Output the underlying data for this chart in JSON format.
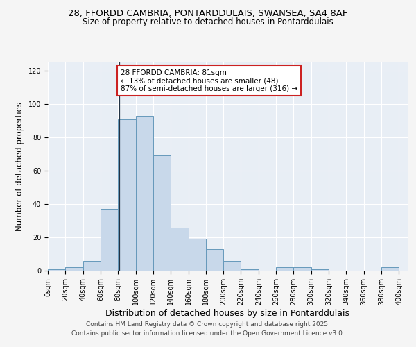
{
  "title1": "28, FFORDD CAMBRIA, PONTARDDULAIS, SWANSEA, SA4 8AF",
  "title2": "Size of property relative to detached houses in Pontarddulais",
  "xlabel": "Distribution of detached houses by size in Pontarddulais",
  "ylabel": "Number of detached properties",
  "bin_edges": [
    0,
    20,
    40,
    60,
    80,
    100,
    120,
    140,
    160,
    180,
    200,
    220,
    240,
    260,
    280,
    300,
    320,
    340,
    360,
    380,
    400
  ],
  "bar_heights": [
    1,
    2,
    6,
    37,
    91,
    93,
    69,
    26,
    19,
    13,
    6,
    1,
    0,
    2,
    2,
    1,
    0,
    0,
    0,
    2
  ],
  "bar_color": "#c8d8ea",
  "bar_edge_color": "#6699bb",
  "property_line_x": 81,
  "annotation_text": "28 FFORDD CAMBRIA: 81sqm\n← 13% of detached houses are smaller (48)\n87% of semi-detached houses are larger (316) →",
  "annotation_box_color": "#ffffff",
  "annotation_border_color": "#cc2222",
  "ylim": [
    0,
    125
  ],
  "xlim": [
    0,
    410
  ],
  "tick_positions": [
    0,
    20,
    40,
    60,
    80,
    100,
    120,
    140,
    160,
    180,
    200,
    220,
    240,
    260,
    280,
    300,
    320,
    340,
    360,
    380,
    400
  ],
  "tick_labels": [
    "0sqm",
    "20sqm",
    "40sqm",
    "60sqm",
    "80sqm",
    "100sqm",
    "120sqm",
    "140sqm",
    "160sqm",
    "180sqm",
    "200sqm",
    "220sqm",
    "240sqm",
    "260sqm",
    "280sqm",
    "300sqm",
    "320sqm",
    "340sqm",
    "360sqm",
    "380sqm",
    "400sqm"
  ],
  "footer1": "Contains HM Land Registry data © Crown copyright and database right 2025.",
  "footer2": "Contains public sector information licensed under the Open Government Licence v3.0.",
  "plot_bg_color": "#e8eef5",
  "fig_bg_color": "#f5f5f5",
  "grid_color": "#ffffff",
  "title_fontsize": 9.5,
  "subtitle_fontsize": 8.5,
  "ylabel_fontsize": 8.5,
  "xlabel_fontsize": 9,
  "tick_fontsize": 7,
  "footer_fontsize": 6.5,
  "annotation_fontsize": 7.5,
  "ytick_vals": [
    0,
    20,
    40,
    60,
    80,
    100,
    120
  ]
}
